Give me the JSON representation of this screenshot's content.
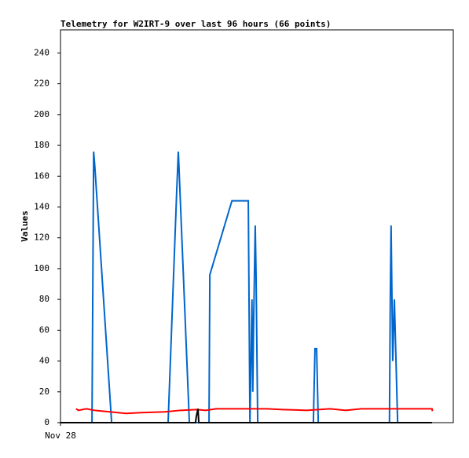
{
  "chart_data": {
    "type": "line",
    "title": "Telemetry for W2IRT-9 over last 96 hours (66 points)",
    "y_label": "Values",
    "xlim": [
      0,
      96
    ],
    "xticks": [
      {
        "value": 0,
        "label": "Nov 28"
      }
    ],
    "ylim": [
      0,
      255
    ],
    "yticks": [
      0,
      20,
      40,
      60,
      80,
      100,
      120,
      140,
      160,
      180,
      200,
      220,
      240
    ],
    "series": [
      {
        "color": "#0066cc",
        "x": [
          7.7,
          8.1,
          8.4,
          12.5,
          26.3,
          28.4,
          28.8,
          29.2,
          31.5,
          36.3,
          36.5,
          41.9,
          45.9,
          46.3,
          46.8,
          47.0,
          47.2,
          47.6,
          47.8,
          48.2,
          61.8,
          62.2,
          62.6,
          63.0,
          80.4,
          80.6,
          80.8,
          81.2,
          81.6,
          82.0,
          82.4
        ],
        "values": [
          0,
          176,
          166,
          0,
          0,
          150,
          176,
          150,
          0,
          0,
          96,
          144,
          144,
          0,
          80,
          20,
          64,
          128,
          96,
          0,
          0,
          48,
          48,
          0,
          0,
          80,
          128,
          40,
          80,
          40,
          0
        ]
      },
      {
        "color": "#ff0000",
        "x": [
          3.8,
          4.4,
          6.3,
          8.3,
          12.1,
          16.0,
          19.8,
          25.5,
          29.4,
          33.2,
          35.5,
          38.0,
          42.8,
          50.5,
          54.3,
          60.1,
          65.9,
          69.7,
          73.5,
          81.2,
          90.8,
          90.9
        ],
        "values": [
          9,
          8,
          9,
          8,
          7,
          6,
          6.5,
          7,
          8,
          8.5,
          8,
          9,
          9,
          9,
          8.5,
          8,
          9,
          8,
          9,
          9,
          9,
          7.5
        ]
      },
      {
        "color": "#000000",
        "x": [
          0,
          33.0,
          33.2,
          33.6,
          33.8,
          90.8
        ],
        "values": [
          0,
          0,
          4,
          9,
          0,
          0
        ]
      }
    ]
  }
}
